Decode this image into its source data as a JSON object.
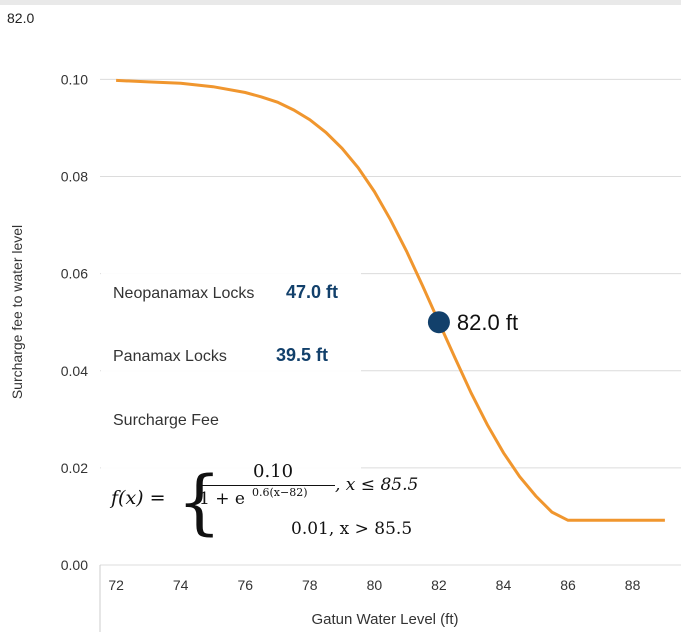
{
  "top_value": "82.0",
  "locks": [
    {
      "label": "Neopanamax Locks",
      "value": "47.0 ft"
    },
    {
      "label": "Panamax Locks",
      "value": "39.5 ft"
    }
  ],
  "fee_label": "Surcharge Fee",
  "formula": {
    "lhs": "f(x) =",
    "numerator": "0.10",
    "denominator": "1 + e",
    "exponent": "0.6(x−82)",
    "cond1": ", x ≤ 85.5",
    "case2": "0.01, x > 85.5"
  },
  "marker": {
    "x": 82.0,
    "y": 0.05,
    "label": "82.0 ft"
  },
  "colors": {
    "curve": "#f0962e",
    "marker": "#12406b",
    "grid": "#dcdcdc"
  },
  "chart_data": {
    "type": "line",
    "xlabel": "Gatun Water Level (ft)",
    "ylabel": "Surcharge fee to water level",
    "xlim": [
      71.5,
      89.5
    ],
    "ylim": [
      0.0,
      0.104
    ],
    "x_ticks": [
      72,
      74,
      76,
      78,
      80,
      82,
      84,
      86,
      88
    ],
    "y_ticks": [
      "0.00",
      "0.02",
      "0.04",
      "0.06",
      "0.08",
      "0.10"
    ],
    "grid": "horizontal",
    "series": [
      {
        "x": [
          72,
          73,
          74,
          75,
          76,
          76.5,
          77,
          77.5,
          78,
          78.5,
          79,
          79.5,
          80,
          80.5,
          81,
          81.5,
          82,
          82.5,
          83,
          83.5,
          84,
          84.5,
          85,
          85.5,
          86,
          87,
          88,
          89
        ],
        "y": [
          0.0998,
          0.0995,
          0.0992,
          0.0985,
          0.0973,
          0.0964,
          0.0953,
          0.0937,
          0.0917,
          0.0891,
          0.0858,
          0.0818,
          0.0769,
          0.0711,
          0.0646,
          0.0574,
          0.05,
          0.0426,
          0.0354,
          0.0289,
          0.0231,
          0.0182,
          0.0142,
          0.0109,
          0.0092,
          0.0092,
          0.0092,
          0.0092
        ]
      }
    ]
  }
}
